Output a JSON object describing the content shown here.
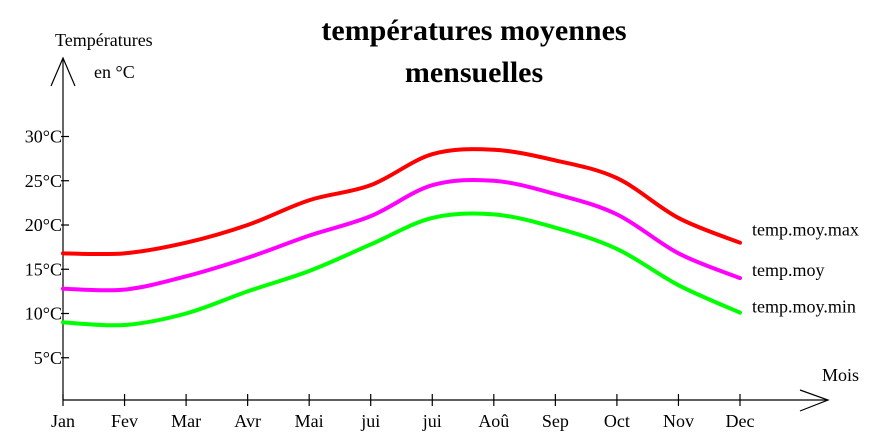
{
  "chart_data": {
    "type": "line",
    "title_line1": "températures moyennes",
    "title_line2": "mensuelles",
    "ylabel_line1": "Températures",
    "ylabel_line2": "en °C",
    "xlabel": "Mois",
    "categories": [
      "Jan",
      "Fev",
      "Mar",
      "Avr",
      "Mai",
      "jui",
      "jui",
      "Aoû",
      "Sep",
      "Oct",
      "Nov",
      "Dec"
    ],
    "y_ticks": [
      {
        "value": 5,
        "label": "5°C"
      },
      {
        "value": 10,
        "label": "10°C"
      },
      {
        "value": 15,
        "label": "15°C"
      },
      {
        "value": 20,
        "label": "20°C"
      },
      {
        "value": 25,
        "label": "25°C"
      },
      {
        "value": 30,
        "label": "30°C"
      }
    ],
    "ylim": [
      0,
      35
    ],
    "grid": false,
    "series": [
      {
        "name": "temp.moy.max",
        "color": "#ff0000",
        "values": [
          16.8,
          16.8,
          18,
          20,
          22.8,
          24.5,
          28,
          28.5,
          27.3,
          25.3,
          20.8,
          18
        ]
      },
      {
        "name": "temp.moy",
        "color": "#ff00ff",
        "values": [
          12.8,
          12.7,
          14.2,
          16.3,
          18.8,
          21,
          24.5,
          25,
          23.5,
          21.2,
          16.8,
          14
        ]
      },
      {
        "name": "temp.moy.min",
        "color": "#00ff00",
        "values": [
          9,
          8.7,
          10,
          12.5,
          14.8,
          17.8,
          20.8,
          21.2,
          19.7,
          17.3,
          13.2,
          10.1
        ]
      }
    ]
  }
}
